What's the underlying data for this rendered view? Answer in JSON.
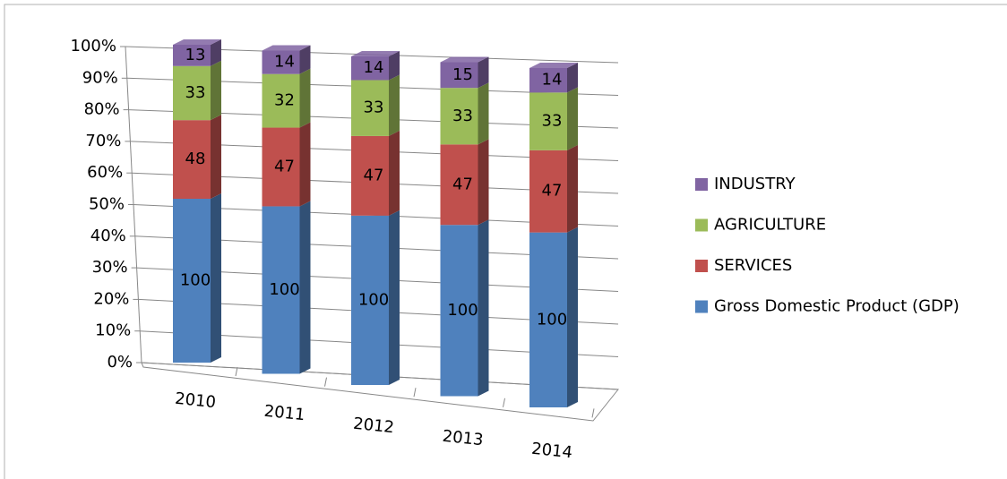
{
  "chart_data": {
    "type": "bar3d",
    "stacking": "percent",
    "categories": [
      "2010",
      "2011",
      "2012",
      "2013",
      "2014"
    ],
    "series": [
      {
        "name": "Gross Domestic Product (GDP)",
        "color": "#4f81bd",
        "values": [
          100,
          100,
          100,
          100,
          100
        ]
      },
      {
        "name": "SERVICES",
        "color": "#c0504d",
        "values": [
          48,
          47,
          47,
          47,
          47
        ]
      },
      {
        "name": "AGRICULTURE",
        "color": "#9bbb59",
        "values": [
          33,
          32,
          33,
          33,
          33
        ]
      },
      {
        "name": "INDUSTRY",
        "color": "#8064a2",
        "values": [
          13,
          14,
          14,
          15,
          14
        ]
      }
    ],
    "ylim": [
      0,
      100
    ],
    "yticks": [
      {
        "value": 0,
        "label": "0%"
      },
      {
        "value": 10,
        "label": "10%"
      },
      {
        "value": 20,
        "label": "20%"
      },
      {
        "value": 30,
        "label": "30%"
      },
      {
        "value": 40,
        "label": "40%"
      },
      {
        "value": 50,
        "label": "50%"
      },
      {
        "value": 60,
        "label": "60%"
      },
      {
        "value": 70,
        "label": "70%"
      },
      {
        "value": 80,
        "label": "80%"
      },
      {
        "value": 90,
        "label": "90%"
      },
      {
        "value": 100,
        "label": "100%"
      }
    ],
    "grid": true,
    "legend": "right"
  }
}
